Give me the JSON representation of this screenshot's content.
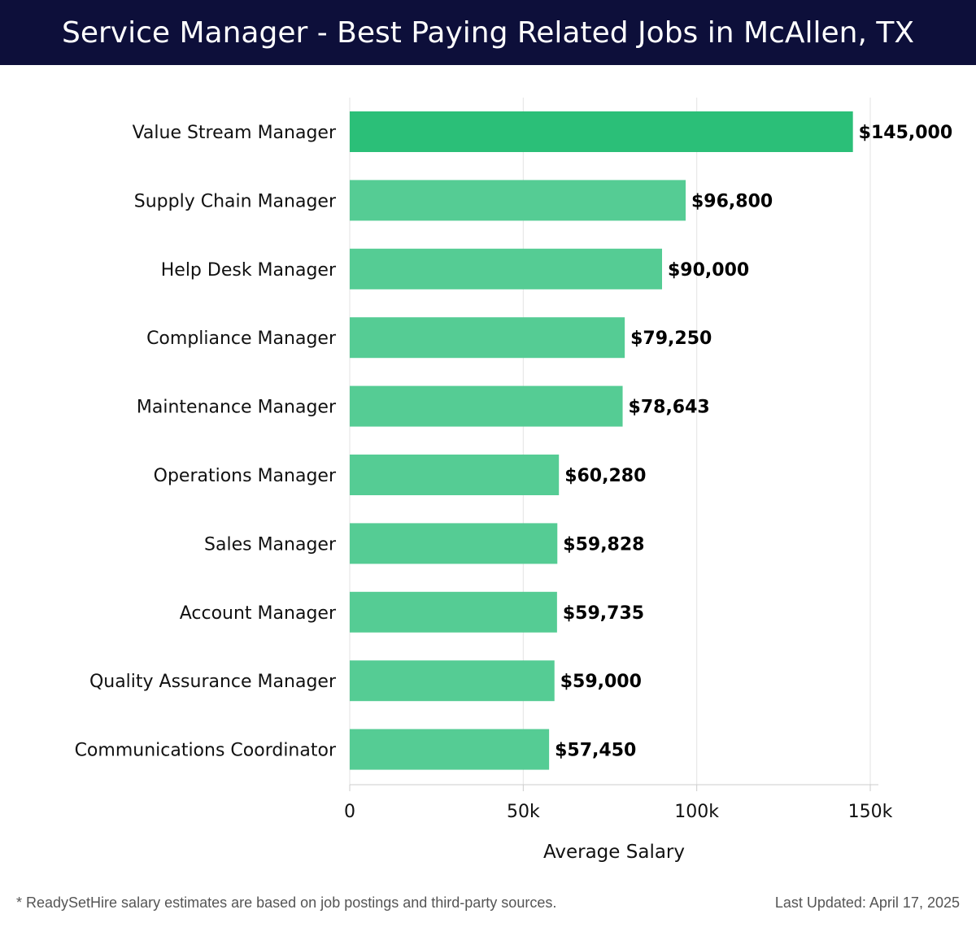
{
  "header": {
    "title": "Service Manager - Best Paying Related Jobs in McAllen, TX"
  },
  "chart_data": {
    "type": "bar",
    "orientation": "horizontal",
    "categories": [
      "Value Stream Manager",
      "Supply Chain Manager",
      "Help Desk Manager",
      "Compliance Manager",
      "Maintenance Manager",
      "Operations Manager",
      "Sales Manager",
      "Account Manager",
      "Quality Assurance Manager",
      "Communications Coordinator"
    ],
    "values": [
      145000,
      96800,
      90000,
      79250,
      78643,
      60280,
      59828,
      59735,
      59000,
      57450
    ],
    "data_labels": [
      "$145,000",
      "$96,800",
      "$90,000",
      "$79,250",
      "$78,643",
      "$60,280",
      "$59,828",
      "$59,735",
      "$59,000",
      "$57,450"
    ],
    "xlabel": "Average Salary",
    "ylabel": "",
    "xlim": [
      0,
      150000
    ],
    "xticks": [
      0,
      50000,
      100000,
      150000
    ],
    "xtick_labels": [
      "0",
      "50k",
      "100k",
      "150k"
    ],
    "grid": "vertical",
    "colors": {
      "top_bar": "#2bbf78",
      "bar": "#55cc94",
      "grid": "#e3e3e3",
      "axis": "#cccccc"
    }
  },
  "footer": {
    "note": "* ReadySetHire salary estimates are based on job postings and third-party sources.",
    "updated": "Last Updated: April 17, 2025"
  }
}
